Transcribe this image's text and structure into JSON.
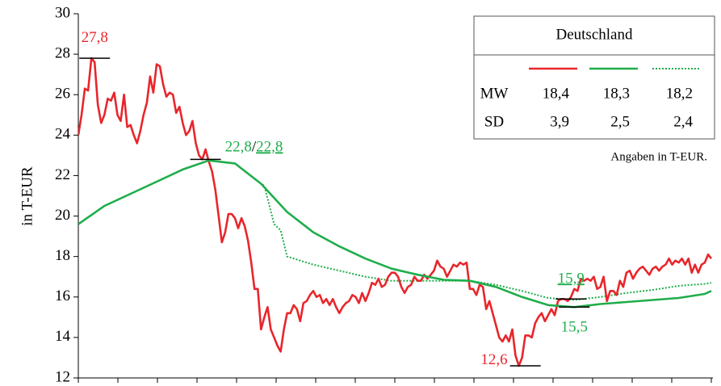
{
  "chart_data": {
    "type": "line",
    "y_label": "in T-EUR",
    "ylim": [
      12,
      30
    ],
    "yticks": [
      12,
      14,
      16,
      18,
      20,
      22,
      24,
      26,
      28,
      30
    ],
    "xlim": [
      0,
      194
    ],
    "xticks": [
      0,
      12.125,
      24.25,
      36.375,
      48.5,
      60.625,
      72.75,
      84.875,
      97,
      109.125,
      121.25,
      133.375,
      145.5,
      157.625,
      169.75,
      181.875,
      194
    ],
    "series": [
      {
        "color": "#e8262b",
        "dash": "solid",
        "x": [
          0,
          1,
          2,
          3,
          4,
          5,
          6,
          7,
          8,
          9,
          10,
          11,
          12,
          13,
          14,
          15,
          16,
          17,
          18,
          19,
          20,
          21,
          22,
          23,
          24,
          25,
          26,
          27,
          28,
          29,
          30,
          31,
          32,
          33,
          34,
          35,
          36,
          37,
          38,
          39,
          40,
          41,
          42,
          43,
          44,
          45,
          46,
          47,
          48,
          49,
          50,
          51,
          52,
          53,
          54,
          55,
          56,
          57,
          58,
          59,
          60,
          61,
          62,
          63,
          64,
          65,
          66,
          67,
          68,
          69,
          70,
          71,
          72,
          73,
          74,
          75,
          76,
          77,
          78,
          79,
          80,
          81,
          82,
          83,
          84,
          85,
          86,
          87,
          88,
          89,
          90,
          91,
          92,
          93,
          94,
          95,
          96,
          97,
          98,
          99,
          100,
          101,
          102,
          103,
          104,
          105,
          106,
          107,
          108,
          109,
          110,
          111,
          112,
          113,
          114,
          115,
          116,
          117,
          118,
          119,
          120,
          121,
          122,
          123,
          124,
          125,
          126,
          127,
          128,
          129,
          130,
          131,
          132,
          133,
          134,
          135,
          136,
          137,
          138,
          139,
          140,
          141,
          142,
          143,
          144,
          145,
          146,
          147,
          148,
          149,
          150,
          151,
          152,
          153,
          154,
          155,
          156,
          157,
          158,
          159,
          160,
          161,
          162,
          163,
          164,
          165,
          166,
          167,
          168,
          169,
          170,
          171,
          172,
          173,
          174,
          175,
          176,
          177,
          178,
          179,
          180,
          181,
          182,
          183,
          184,
          185,
          186,
          187,
          188,
          189,
          190,
          191,
          192,
          193,
          194
        ],
        "values": [
          24.0,
          25.0,
          26.3,
          26.2,
          27.8,
          27.6,
          25.5,
          24.6,
          25.0,
          25.8,
          25.7,
          26.1,
          25.0,
          24.7,
          26.0,
          24.4,
          24.5,
          24.0,
          23.6,
          24.2,
          25.0,
          25.6,
          26.9,
          26.1,
          27.5,
          27.4,
          26.5,
          25.9,
          26.1,
          26.0,
          25.1,
          25.4,
          24.6,
          24.0,
          24.2,
          24.7,
          23.6,
          23.0,
          22.8,
          23.3,
          22.7,
          22.2,
          21.3,
          20.0,
          18.7,
          19.2,
          20.1,
          20.1,
          19.9,
          19.4,
          19.9,
          19.5,
          18.8,
          17.7,
          16.4,
          16.4,
          14.4,
          15.0,
          15.5,
          14.4,
          14.0,
          13.6,
          13.3,
          14.4,
          15.2,
          15.2,
          15.6,
          15.4,
          14.8,
          15.7,
          15.8,
          16.1,
          16.3,
          16.0,
          16.1,
          15.7,
          15.9,
          15.6,
          15.9,
          15.5,
          15.2,
          15.5,
          15.7,
          15.8,
          16.1,
          16.0,
          15.7,
          16.2,
          15.8,
          16.2,
          16.7,
          16.6,
          16.9,
          16.5,
          16.6,
          17.0,
          17.2,
          17.2,
          17.0,
          16.5,
          16.2,
          16.5,
          16.6,
          17.0,
          16.8,
          16.8,
          17.1,
          16.9,
          17.1,
          17.3,
          17.8,
          17.5,
          17.4,
          17.0,
          17.3,
          17.6,
          17.5,
          17.7,
          17.6,
          17.7,
          16.4,
          16.4,
          16.1,
          16.6,
          16.5,
          15.4,
          15.8,
          15.2,
          14.6,
          14.0,
          13.8,
          14.1,
          13.8,
          14.4,
          13.1,
          12.6,
          13.0,
          14.1,
          14.1,
          14.0,
          14.7,
          15.0,
          15.2,
          14.8,
          15.1,
          15.4,
          15.1,
          15.8,
          15.9,
          15.9,
          15.8,
          16.0,
          16.4,
          16.3,
          16.9,
          16.8,
          16.9,
          16.8,
          17.0,
          16.4,
          16.5,
          17.0,
          15.8,
          16.3,
          16.3,
          16.1,
          16.8,
          16.5,
          17.2,
          17.3,
          16.9,
          17.2,
          17.4,
          17.5,
          17.3,
          17.1,
          17.4,
          17.5,
          17.3,
          17.5,
          17.6,
          17.9,
          17.6,
          17.8,
          17.7,
          17.9,
          17.6,
          17.9,
          17.2,
          17.6,
          17.2,
          17.6,
          17.7,
          18.1,
          17.9
        ]
      },
      {
        "color": "#1fad4b",
        "dash": "solid",
        "x": [
          0,
          8,
          16,
          24,
          32,
          40,
          48,
          56,
          64,
          72,
          80,
          88,
          96,
          104,
          112,
          120,
          128,
          136,
          144,
          152,
          160,
          168,
          176,
          184,
          192,
          194
        ],
        "values": [
          19.6,
          20.5,
          21.1,
          21.7,
          22.3,
          22.75,
          22.6,
          21.6,
          20.2,
          19.2,
          18.5,
          17.9,
          17.4,
          17.1,
          16.85,
          16.8,
          16.5,
          16.0,
          15.6,
          15.5,
          15.65,
          15.75,
          15.85,
          15.95,
          16.15,
          16.3
        ]
      },
      {
        "color": "#1fad4b",
        "dash": "dotted",
        "x": [
          0,
          8,
          16,
          24,
          32,
          40,
          48,
          56,
          57,
          60,
          62,
          64,
          72,
          80,
          88,
          96,
          104,
          112,
          120,
          128,
          136,
          144,
          152,
          160,
          168,
          176,
          184,
          192,
          194
        ],
        "values": [
          19.6,
          20.5,
          21.1,
          21.7,
          22.3,
          22.75,
          22.6,
          21.6,
          21.5,
          19.6,
          19.3,
          18.0,
          17.6,
          17.3,
          17.0,
          16.8,
          16.8,
          16.8,
          16.8,
          16.6,
          16.3,
          15.95,
          15.85,
          16.0,
          16.2,
          16.35,
          16.55,
          16.65,
          16.7
        ]
      }
    ],
    "annotations": [
      {
        "x": 5,
        "value": 27.8,
        "position": "above",
        "parts": [
          {
            "text": "27,8",
            "color": "#e8262b"
          }
        ]
      },
      {
        "x": 39,
        "value": 22.8,
        "position": "right",
        "parts": [
          {
            "text": "22,8",
            "color": "#1fad4b"
          },
          {
            "text": "/",
            "color": "#000000"
          },
          {
            "text": "22,8",
            "color": "#1fad4b",
            "underline": "dotted"
          }
        ]
      },
      {
        "x": 151,
        "value": 15.9,
        "position": "above",
        "parts": [
          {
            "text": "15,9",
            "color": "#1fad4b",
            "underline": "dotted"
          }
        ]
      },
      {
        "x": 152,
        "value": 15.5,
        "position": "below",
        "parts": [
          {
            "text": "15,5",
            "color": "#1fad4b"
          }
        ]
      },
      {
        "x": 137,
        "value": 12.6,
        "position": "left",
        "parts": [
          {
            "text": "12,6",
            "color": "#e8262b"
          }
        ]
      }
    ],
    "legend_table": {
      "title": "Deutschland",
      "rows": [
        {
          "label": "MW",
          "values": [
            "18,4",
            "18,3",
            "18,2"
          ]
        },
        {
          "label": "SD",
          "values": [
            "3,9",
            "2,5",
            "2,4"
          ]
        }
      ],
      "note": "Angaben in T-EUR."
    }
  }
}
